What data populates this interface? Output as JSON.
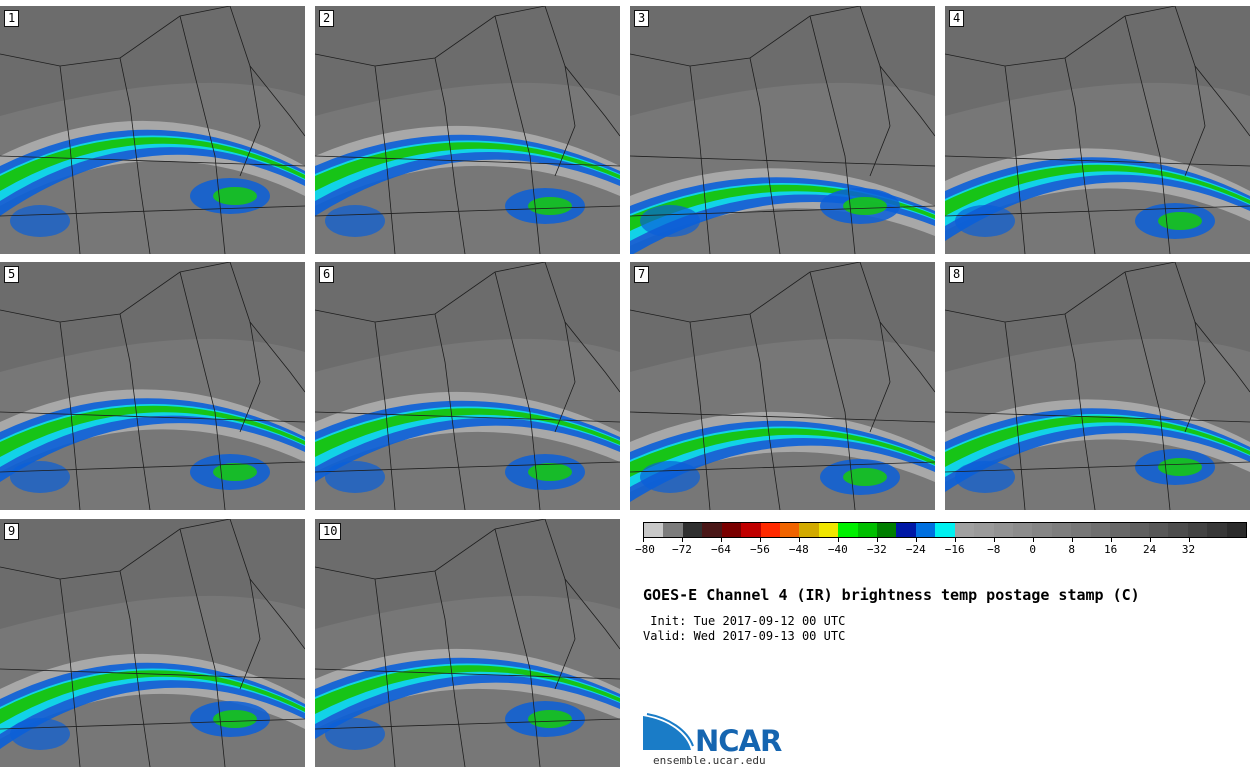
{
  "panels": [
    {
      "label": "1"
    },
    {
      "label": "2"
    },
    {
      "label": "3"
    },
    {
      "label": "4"
    },
    {
      "label": "5"
    },
    {
      "label": "6"
    },
    {
      "label": "7"
    },
    {
      "label": "8"
    },
    {
      "label": "9"
    },
    {
      "label": "10"
    }
  ],
  "legend": {
    "colors": [
      "#c8c8c8",
      "#7c7c7c",
      "#303030",
      "#4a1717",
      "#7a0000",
      "#c00000",
      "#ff2a00",
      "#f06400",
      "#d2aa00",
      "#f0e600",
      "#00f000",
      "#00bf00",
      "#007f00",
      "#0018a6",
      "#0070e0",
      "#00f0f0",
      "#a0a0a0",
      "#9a9a9a",
      "#939393",
      "#8c8c8c",
      "#858585",
      "#7e7e7e",
      "#777777",
      "#6f6f6f",
      "#686868",
      "#5f5f5f",
      "#575757",
      "#4d4d4d",
      "#434343",
      "#383838",
      "#2c2c2c"
    ],
    "ticks": [
      "−80",
      "−72",
      "−64",
      "−56",
      "−48",
      "−40",
      "−32",
      "−24",
      "−16",
      "−8",
      "0",
      "8",
      "16",
      "24",
      "32"
    ]
  },
  "title": "GOES-E Channel 4 (IR) brightness temp postage stamp (C)",
  "init": " Init: Tue 2017-09-12 00 UTC",
  "valid": "Valid: Wed 2017-09-13 00 UTC",
  "logo": {
    "text": "NCAR",
    "url": "ensemble.ucar.edu"
  }
}
